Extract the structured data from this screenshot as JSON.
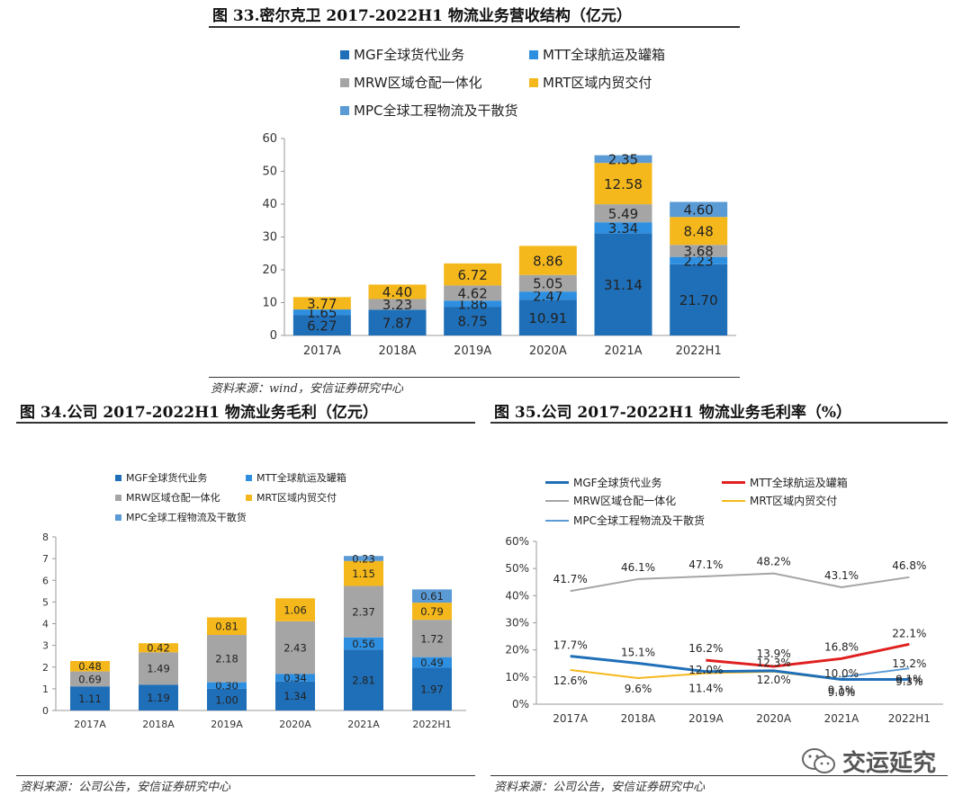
{
  "fig33": {
    "title": "图 33.密尔克卫 2017-2022H1 物流业务营收结构（亿元）",
    "source": "资料来源：wind，安信证券研究中心"
  },
  "fig34": {
    "title": "图 34.公司 2017-2022H1 物流业务毛利（亿元）",
    "source": "资料来源：公司公告，安信证券研究中心"
  },
  "fig35": {
    "title": "图 35.公司 2017-2022H1 物流业务毛利率（%）",
    "source": "资料来源：公司公告，安信证券研究中心"
  },
  "watermark": {
    "text": "交运延究",
    "icon": "wechat-icon"
  },
  "colors": {
    "MGF": "#1f6fb8",
    "MTT": "#2e8fe0",
    "MRW": "#a5a5a5",
    "MRT": "#f5b81c",
    "MPC": "#5b9bd5"
  },
  "chart_data": [
    {
      "type": "bar",
      "stacked": true,
      "categories": [
        "2017A",
        "2018A",
        "2019A",
        "2020A",
        "2021A",
        "2022H1"
      ],
      "ylim": [
        0,
        60
      ],
      "yticks": [
        "0",
        "10",
        "20",
        "30",
        "40",
        "50",
        "60"
      ],
      "legend_position": "top",
      "series": [
        {
          "name": "MGF全球货代业务",
          "color": "#1f6fb8",
          "values": [
            6.27,
            7.87,
            8.75,
            10.91,
            31.14,
            21.7
          ],
          "labels": [
            "6.27",
            "7.87",
            "8.75",
            "10.91",
            "31.14",
            "21.70"
          ]
        },
        {
          "name": "MTT全球航运及罐箱",
          "color": "#2e8fe0",
          "values": [
            1.65,
            0,
            1.86,
            2.47,
            3.34,
            2.23
          ],
          "labels": [
            "1.65",
            "",
            "1.86",
            "2.47",
            "3.34",
            "2.23"
          ]
        },
        {
          "name": "MRW区域仓配一体化",
          "color": "#a5a5a5",
          "values": [
            0,
            3.23,
            4.62,
            5.05,
            5.49,
            3.68
          ],
          "labels": [
            "",
            "3.23",
            "4.62",
            "5.05",
            "5.49",
            "3.68"
          ]
        },
        {
          "name": "MRT区域内贸交付",
          "color": "#f5b81c",
          "values": [
            3.77,
            4.4,
            6.72,
            8.86,
            12.58,
            8.48
          ],
          "labels": [
            "3.77",
            "4.40",
            "6.72",
            "8.86",
            "12.58",
            "8.48"
          ]
        },
        {
          "name": "MPC全球工程物流及干散货",
          "color": "#5b9bd5",
          "values": [
            0,
            0,
            0,
            0,
            2.35,
            4.6
          ],
          "labels": [
            "",
            "",
            "",
            "",
            "2.35",
            "4.60"
          ]
        }
      ]
    },
    {
      "type": "bar",
      "stacked": true,
      "categories": [
        "2017A",
        "2018A",
        "2019A",
        "2020A",
        "2021A",
        "2022H1"
      ],
      "ylim": [
        0,
        8
      ],
      "yticks": [
        "0",
        "1",
        "2",
        "3",
        "4",
        "5",
        "6",
        "7",
        "8"
      ],
      "legend_position": "top",
      "series": [
        {
          "name": "MGF全球货代业务",
          "color": "#1f6fb8",
          "values": [
            1.11,
            1.19,
            1.0,
            1.34,
            2.81,
            1.97
          ],
          "labels": [
            "1.11",
            "1.19",
            "1.00",
            "1.34",
            "2.81",
            "1.97"
          ]
        },
        {
          "name": "MTT全球航运及罐箱",
          "color": "#2e8fe0",
          "values": [
            0,
            0,
            0.3,
            0.34,
            0.56,
            0.49
          ],
          "labels": [
            "",
            "",
            "0.30",
            "0.34",
            "0.56",
            "0.49"
          ]
        },
        {
          "name": "MRW区域仓配一体化",
          "color": "#a5a5a5",
          "values": [
            0.69,
            1.49,
            2.18,
            2.43,
            2.37,
            1.72
          ],
          "labels": [
            "0.69",
            "1.49",
            "2.18",
            "2.43",
            "2.37",
            "1.72"
          ]
        },
        {
          "name": "MRT区域内贸交付",
          "color": "#f5b81c",
          "values": [
            0.48,
            0.42,
            0.81,
            1.06,
            1.15,
            0.79
          ],
          "labels": [
            "0.48",
            "0.42",
            "0.81",
            "1.06",
            "1.15",
            "0.79"
          ]
        },
        {
          "name": "MPC全球工程物流及干散货",
          "color": "#5b9bd5",
          "values": [
            0,
            0,
            0,
            0,
            0.23,
            0.61
          ],
          "labels": [
            "",
            "",
            "",
            "",
            "0.23",
            "0.61"
          ]
        }
      ]
    },
    {
      "type": "line",
      "categories": [
        "2017A",
        "2018A",
        "2019A",
        "2020A",
        "2021A",
        "2022H1"
      ],
      "ylim": [
        0,
        60
      ],
      "yticks": [
        "0%",
        "10%",
        "20%",
        "30%",
        "40%",
        "50%",
        "60%"
      ],
      "legend_position": "top",
      "series": [
        {
          "name": "MGF全球货代业务",
          "color": "#1f6fb8",
          "width": 3,
          "values": [
            17.7,
            15.1,
            12.0,
            12.3,
            9.1,
            9.1
          ],
          "labels": [
            "17.7%",
            "15.1%",
            "12.0%",
            "12.3%",
            "9.1%",
            "9.1%"
          ]
        },
        {
          "name": "MTT全球航运及罐箱",
          "color": "#e02020",
          "width": 3,
          "values": [
            null,
            null,
            16.2,
            13.9,
            16.8,
            22.1
          ],
          "labels": [
            "",
            "",
            "16.2%",
            "13.9%",
            "16.8%",
            "22.1%"
          ]
        },
        {
          "name": "MRW区域仓配一体化",
          "color": "#a5a5a5",
          "width": 2,
          "values": [
            41.7,
            46.1,
            47.1,
            48.2,
            43.1,
            46.8
          ],
          "labels": [
            "41.7%",
            "46.1%",
            "47.1%",
            "48.2%",
            "43.1%",
            "46.8%"
          ]
        },
        {
          "name": "MRT区域内贸交付",
          "color": "#f5b81c",
          "width": 2,
          "values": [
            12.6,
            9.6,
            11.4,
            12.0,
            9.0,
            9.3
          ],
          "labels": [
            "12.6%",
            "9.6%",
            "11.4%",
            "12.0%",
            "9.0%",
            "9.3%"
          ]
        },
        {
          "name": "MPC全球工程物流及干散货",
          "color": "#5b9bd5",
          "width": 2,
          "values": [
            null,
            null,
            null,
            null,
            10.0,
            13.2
          ],
          "labels": [
            "",
            "",
            "",
            "",
            "10.0%",
            "13.2%"
          ]
        }
      ]
    }
  ]
}
